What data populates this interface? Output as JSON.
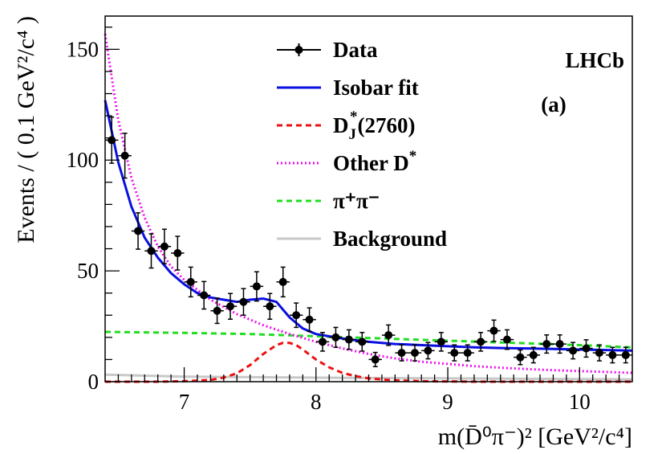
{
  "chart_data": {
    "type": "scatter",
    "xlabel": "m(D̄⁰π⁻)² [GeV²/c⁴]",
    "ylabel": "Events / ( 0.1 GeV²/c⁴ )",
    "xlim": [
      6.4,
      10.4
    ],
    "ylim": [
      0,
      165
    ],
    "xticks": [
      7,
      8,
      9,
      10
    ],
    "yticks": [
      0,
      50,
      100,
      150
    ],
    "grid": false,
    "legend_position": "top-center",
    "annotations": [
      "LHCb",
      "(a)"
    ],
    "series": [
      {
        "name": "Data",
        "kind": "points",
        "color": "#000000",
        "x": [
          6.45,
          6.55,
          6.65,
          6.75,
          6.85,
          6.95,
          7.05,
          7.15,
          7.25,
          7.35,
          7.45,
          7.55,
          7.65,
          7.75,
          7.85,
          7.95,
          8.05,
          8.15,
          8.25,
          8.35,
          8.45,
          8.55,
          8.65,
          8.75,
          8.85,
          8.95,
          9.05,
          9.15,
          9.25,
          9.35,
          9.45,
          9.55,
          9.65,
          9.75,
          9.85,
          9.95,
          10.05,
          10.15,
          10.25,
          10.35
        ],
        "y": [
          109,
          102,
          68,
          59,
          61,
          58,
          45,
          39,
          32,
          34,
          36,
          43,
          34,
          45,
          30,
          28,
          18,
          20,
          19,
          18,
          10,
          21,
          13,
          13,
          14,
          18,
          13,
          13,
          18,
          23,
          19,
          11,
          12,
          17,
          17,
          14,
          15,
          13,
          12,
          12
        ],
        "yerr": [
          10.4,
          10.1,
          8.2,
          7.7,
          7.8,
          7.6,
          6.7,
          6.2,
          5.7,
          5.8,
          6.0,
          6.6,
          5.8,
          6.7,
          5.5,
          5.3,
          4.2,
          4.5,
          4.4,
          4.2,
          3.2,
          4.6,
          3.6,
          3.6,
          3.7,
          4.2,
          3.6,
          3.6,
          4.2,
          4.8,
          4.4,
          3.3,
          3.5,
          4.1,
          4.1,
          3.7,
          3.9,
          3.6,
          3.5,
          3.5
        ]
      },
      {
        "name": "Isobar fit",
        "kind": "line",
        "style": "solid",
        "color": "#0a0fe0",
        "x": [
          6.4,
          6.5,
          6.6,
          6.7,
          6.8,
          6.9,
          7.0,
          7.1,
          7.2,
          7.3,
          7.4,
          7.5,
          7.6,
          7.7,
          7.8,
          7.9,
          8.0,
          8.1,
          8.2,
          8.4,
          8.6,
          8.8,
          9.0,
          9.2,
          9.4,
          9.6,
          9.8,
          10.0,
          10.2,
          10.4
        ],
        "y": [
          127,
          99,
          79,
          65,
          56,
          49,
          44,
          40,
          38,
          37,
          36,
          37,
          37.5,
          36,
          29,
          24,
          21.5,
          20.5,
          19.5,
          18,
          17,
          16.5,
          16,
          15.5,
          15.2,
          15,
          14.8,
          14.5,
          14.3,
          14
        ]
      },
      {
        "name": "D_J^*(2760)",
        "kind": "line",
        "style": "dashed",
        "color": "#ee1111",
        "x": [
          6.4,
          6.8,
          7.0,
          7.2,
          7.3,
          7.4,
          7.5,
          7.6,
          7.7,
          7.75,
          7.8,
          7.85,
          7.9,
          8.0,
          8.1,
          8.2,
          8.3,
          8.4,
          8.6,
          8.8,
          9.0,
          9.2,
          10.4
        ],
        "y": [
          0,
          0,
          0.2,
          0.8,
          1.8,
          3.8,
          7.5,
          12.5,
          16.5,
          17.5,
          17.5,
          16.5,
          14.5,
          10,
          6.5,
          4,
          2.5,
          1.5,
          0.6,
          0.2,
          0.1,
          0,
          0
        ]
      },
      {
        "name": "Other D^*",
        "kind": "line",
        "style": "dotted",
        "color": "#ee11ee",
        "x": [
          6.4,
          6.5,
          6.6,
          6.7,
          6.8,
          6.9,
          7.0,
          7.2,
          7.4,
          7.6,
          7.8,
          8.0,
          8.2,
          8.4,
          8.6,
          8.8,
          9.0,
          9.2,
          9.4,
          9.6,
          9.8,
          10.0,
          10.2,
          10.4
        ],
        "y": [
          157,
          118,
          92,
          74,
          61,
          52,
          46,
          37,
          30.5,
          25.5,
          21.5,
          18,
          15,
          12.5,
          10.5,
          9,
          8,
          7,
          6.3,
          5.7,
          5.2,
          4.8,
          4.4,
          4
        ]
      },
      {
        "name": "π⁺π⁻",
        "kind": "line",
        "style": "dashed",
        "color": "#22dd22",
        "x": [
          6.4,
          7.0,
          7.5,
          8.0,
          8.5,
          9.0,
          9.5,
          10.0,
          10.4
        ],
        "y": [
          22.5,
          22,
          21.5,
          20.5,
          19.5,
          18.5,
          17.5,
          16.5,
          15.5
        ]
      },
      {
        "name": "Background",
        "kind": "line",
        "style": "solid",
        "color": "#c8c8c8",
        "x": [
          6.4,
          7.0,
          8.0,
          9.0,
          10.0,
          10.4
        ],
        "y": [
          3.2,
          2.3,
          1.8,
          1.5,
          1.2,
          1.0
        ]
      }
    ]
  }
}
